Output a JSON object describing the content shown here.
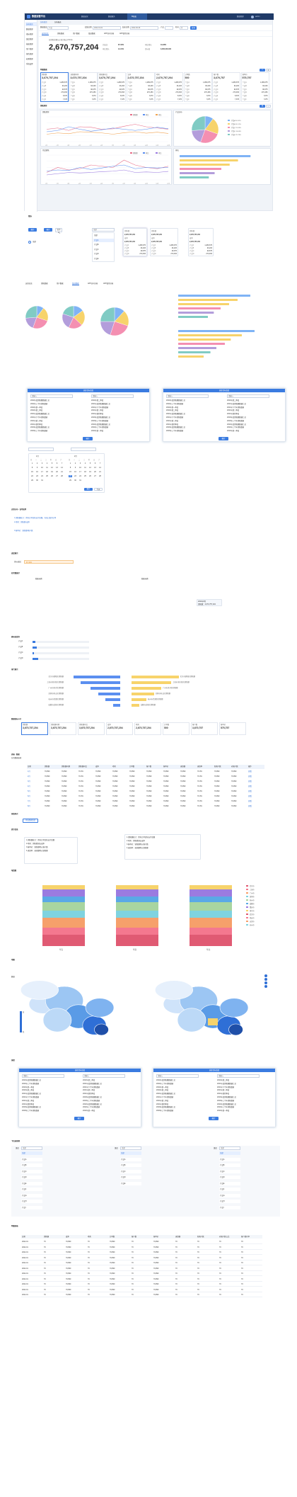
{
  "app": {
    "title": "数据运营平台",
    "nav": [
      "数据运营",
      "数据服务",
      "BI报表"
    ],
    "user": "数据管理",
    "admin": "admin",
    "logo_icon": "chart-logo-icon"
  },
  "sidebar": {
    "items": [
      "分析首页",
      "数据管理",
      "指标管理",
      "维度管理",
      "报表管理",
      "用户管理",
      "角色管理",
      "权限管理",
      "系统设置"
    ]
  },
  "tabs": [
    "分析首页",
    "分析报表"
  ],
  "filters": {
    "l1": "数据维度",
    "v1": "产品",
    "l2": "起始日期",
    "v2": "2022-01-01",
    "l3": "结束日期",
    "v3": "2022-06-30",
    "l4": "产品",
    "l5": "时间",
    "v5": "月",
    "btn": "查询"
  },
  "subtabs": [
    "运营总览",
    "销售数据",
    "用户数据",
    "渠道数据",
    "APP访问分析",
    "APP使用分析"
  ],
  "kpi": {
    "label": "总销售金额(元) 统计截止2022年",
    "value": "2,670,757,204",
    "side": [
      "完成比",
      "同比增长",
      "环比增长",
      "目标值"
    ],
    "sidev": [
      "87.34%",
      "19.28%",
      "12.21%",
      "3,000,000,000"
    ]
  },
  "detail_title": "明细数据",
  "cols": [
    "销售额",
    "销售额同期",
    "销售额同比",
    "成本",
    "毛利",
    "订单数",
    "客户数",
    "客单价"
  ],
  "colv": [
    "3,670,757,204",
    "3,670,757,204",
    "3,670,757,204",
    "2,670,757,204",
    "2,670,757,204",
    "500",
    "3,670,757",
    "575,757"
  ],
  "rows": [
    [
      "产品A",
      "1,289,675"
    ],
    [
      "产品B",
      "93,203"
    ],
    [
      "产品C",
      "90,675"
    ],
    [
      "产品D",
      "270,453"
    ],
    [
      "产品E",
      "8,670"
    ],
    [
      "产品F",
      "7,675"
    ]
  ],
  "charts": {
    "c1": "销售趋势",
    "c2": "产品分布",
    "c3": "月度销售",
    "c4": "排名",
    "legend": [
      "销售额",
      "同比",
      "环比"
    ],
    "pie_legend": [
      "产品A 10.32%",
      "产品B 20.12%",
      "产品C 25.33%",
      "产品D 18.45%",
      "产品E 25.78%"
    ]
  },
  "months": [
    "1月",
    "2月",
    "3月",
    "4月",
    "5月",
    "6月",
    "7月",
    "8月",
    "9月",
    "10月",
    "11月",
    "12月"
  ],
  "sec2": {
    "t1": "筛选",
    "b1": "确定",
    "b2": "取消",
    "items": [
      "全部",
      "产品A",
      "产品B",
      "产品C",
      "产品D",
      "产品E"
    ],
    "popup": [
      "销售额",
      "2,670,757,204",
      "成本",
      "2,670,757,204"
    ]
  },
  "sec3_tabs": [
    "运营总览",
    "销售数据",
    "用户数据",
    "渠道数据",
    "APP访问分析",
    "APP使用分析"
  ],
  "modal": {
    "title": "选择目标维度",
    "search": "请输入",
    "ok": "确定",
    "list": [
      "2022年度销售额数据汇总",
      "2022年上半年销售数据",
      "2022年第一季度",
      "2022年第二季度",
      "2021年度销售额数据汇总",
      "2021年下半年销售数据",
      "2021年第三季度",
      "2021年第四季度",
      "2020年度销售额数据汇总",
      "2020年上半年销售数据"
    ]
  },
  "calendar": {
    "title": "2022年",
    "m1": "1月",
    "m2": "2月",
    "wd": [
      "日",
      "一",
      "二",
      "三",
      "四",
      "五",
      "六"
    ],
    "ok": "确定",
    "today": "今天"
  },
  "notice": {
    "title": "运营分布 · 说明说明",
    "lines": [
      "1.销售额统计：所有订单实际支付金额，包括已取消订单",
      "2.毛利：销售额-成本",
      "3.客单价：销售额/客户数"
    ]
  },
  "s_prog": {
    "title": "进度展示",
    "a": "目标进度：",
    "b": "87.34%"
  },
  "bar_sec": {
    "title": "柱状图展示",
    "l1": "图表标题",
    "l2": "图表标题",
    "tip": [
      "2022年8月",
      "销售额：2,670,757,204"
    ]
  },
  "hbar_sec": {
    "title": "横向进度条",
    "items": [
      "产品A",
      "产品B",
      "产品C",
      "产品D"
    ]
  },
  "rank_sec": {
    "title": "排行展示",
    "left": [
      "北京市朝阳区销售额",
      "上海市浦东新区销售额",
      "广州市天河区销售额",
      "深圳市南山区销售额",
      "杭州市西湖区销售额",
      "成都市武侯区销售额"
    ],
    "right": [
      "北京市朝阳区销售额",
      "上海市浦东新区销售额",
      "广州市天河区销售额",
      "深圳市南山区销售额",
      "杭州市西湖区销售额",
      "成都市武侯区销售额"
    ]
  },
  "kpi2": {
    "title": "数据指标卡片"
  },
  "table_sec": {
    "title": "表格 · 数据",
    "sub": "分页数据表格",
    "head": [
      "日期",
      "销售额",
      "销售额同期",
      "销售额同比",
      "成本",
      "毛利",
      "订单数",
      "客户数",
      "客单价",
      "退款额",
      "退款率",
      "新客户数",
      "老客户数",
      "操作"
    ],
    "rows": [
      [
        "1月",
        "70,890",
        "70,890",
        "70.3%",
        "70,890",
        "70,890",
        "70,890",
        "70,890",
        "70,890",
        "70,890",
        "70.3%",
        "70,890",
        "70,890",
        "查看"
      ],
      [
        "2月",
        "70,890",
        "70,890",
        "70.3%",
        "70,890",
        "70,890",
        "70,890",
        "70,890",
        "70,890",
        "70,890",
        "70.3%",
        "70,890",
        "70,890",
        "查看"
      ],
      [
        "3月",
        "70,890",
        "70,890",
        "70.3%",
        "70,890",
        "70,890",
        "70,890",
        "70,890",
        "70,890",
        "70,890",
        "70.3%",
        "70,890",
        "70,890",
        "查看"
      ],
      [
        "4月",
        "70,890",
        "70,890",
        "70.3%",
        "70,890",
        "70,890",
        "70,890",
        "70,890",
        "70,890",
        "70,890",
        "70.3%",
        "70,890",
        "70,890",
        "查看"
      ],
      [
        "5月",
        "70,890",
        "70,890",
        "70.3%",
        "70,890",
        "70,890",
        "70,890",
        "70,890",
        "70,890",
        "70,890",
        "70.3%",
        "70,890",
        "70,890",
        "查看"
      ],
      [
        "6月",
        "70,890",
        "70,890",
        "70.3%",
        "70,890",
        "70,890",
        "70,890",
        "70,890",
        "70,890",
        "70,890",
        "70.3%",
        "70,890",
        "70,890",
        "查看"
      ],
      [
        "7月",
        "70,890",
        "70,890",
        "70.3%",
        "70,890",
        "70,890",
        "70,890",
        "70,890",
        "70,890",
        "70,890",
        "70.3%",
        "70,890",
        "70,890",
        "查看"
      ],
      [
        "8月",
        "70,890",
        "70,890",
        "70.3%",
        "70,890",
        "70,890",
        "70,890",
        "70,890",
        "70,890",
        "70,890",
        "70.3%",
        "70,890",
        "70,890",
        "查看"
      ]
    ]
  },
  "btn_sec": {
    "title": "按钮样式",
    "btn": "添加数据维度"
  },
  "tip_sec": {
    "title": "提示信息",
    "lines": [
      "1.销售额统计：所有订单实际支付金额",
      "2.毛利：销售额减去成本",
      "3.客单价：销售额除以客户数",
      "4.退款率：退款额除以销售额"
    ]
  },
  "stack_sec": {
    "title": "堆叠图",
    "cats": [
      "华东",
      "华南",
      "华北"
    ],
    "legend": [
      "北京市",
      "上海市",
      "广州市",
      "深圳市",
      "杭州市",
      "成都市",
      "重庆市",
      "南京市",
      "武汉市",
      "西安市",
      "天津市",
      "苏州市"
    ]
  },
  "map_sec": {
    "title": "地图",
    "sub": "数据",
    "legend_high": "高",
    "legend_low": "低"
  },
  "popup_sec": {
    "title": "弹窗"
  },
  "select_sec": {
    "title": "下拉选择框",
    "l": "维度",
    "v": "全部",
    "opts": [
      "全部",
      "产品A",
      "产品B",
      "产品C",
      "产品D",
      "产品E",
      "产品F",
      "产品G",
      "产品H",
      "产品I"
    ]
  },
  "bottom_sec": {
    "title": "明细表格",
    "head": [
      "日期",
      "销售额",
      "成本",
      "毛利",
      "订单数",
      "客户数",
      "客单价",
      "退款额",
      "新客户数",
      "老客户数占比",
      "客户留存率"
    ],
    "row": [
      "2022-01",
      "70",
      "70,890",
      "70",
      "70,890",
      "70",
      "70,890",
      "70",
      "70",
      "70",
      "70"
    ]
  }
}
